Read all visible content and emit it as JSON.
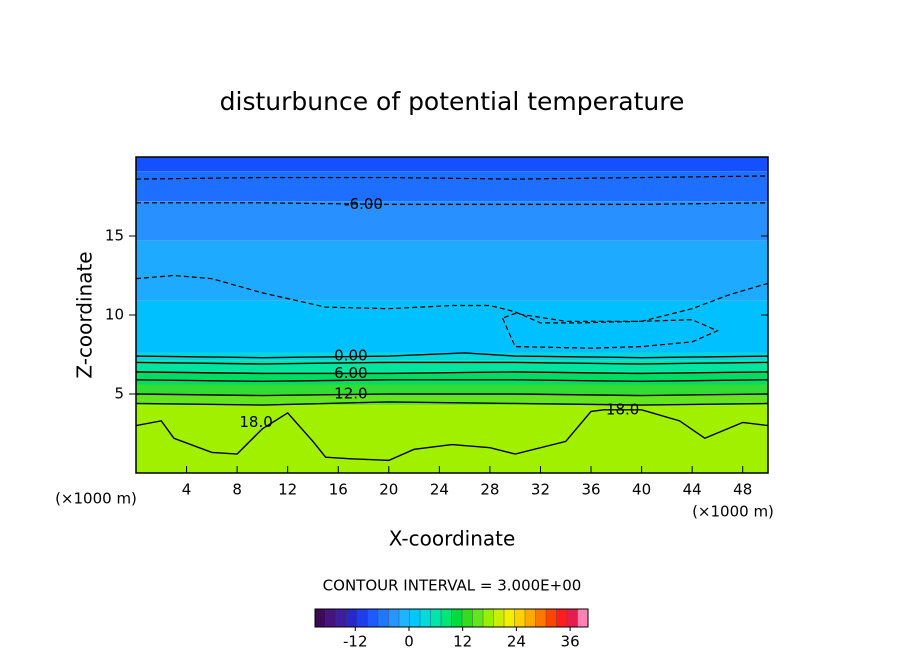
{
  "chart_data": {
    "type": "contour",
    "title": "disturbunce of potential temperature",
    "xlabel": "X-coordinate",
    "ylabel": "Z-coordinate",
    "x_unit_labels": [
      "(×1000 m)",
      "(×1000 m)"
    ],
    "xlim": [
      0,
      50
    ],
    "ylim": [
      0,
      20
    ],
    "xticks": [
      4,
      8,
      12,
      16,
      20,
      24,
      28,
      32,
      36,
      40,
      44,
      48
    ],
    "yticks": [
      5,
      10,
      15
    ],
    "bands": [
      {
        "z": [
          19.1,
          20
        ],
        "value": -15,
        "color": "#1450ff"
      },
      {
        "z": [
          17.2,
          19.1
        ],
        "value": -12,
        "color": "#1e6eff"
      },
      {
        "z": [
          14.7,
          17.2
        ],
        "value": -9,
        "color": "#2890ff"
      },
      {
        "z": [
          10.9,
          14.7
        ],
        "value": -6,
        "color": "#1eaaff"
      },
      {
        "z": [
          7.6,
          10.9
        ],
        "value": -3,
        "color": "#00c0ff"
      },
      {
        "z": [
          7.1,
          7.6
        ],
        "value": 0,
        "color": "#00d8dc"
      },
      {
        "z": [
          6.4,
          7.1
        ],
        "value": 3,
        "color": "#00e6a0"
      },
      {
        "z": [
          5.6,
          6.4
        ],
        "value": 6,
        "color": "#00dc64"
      },
      {
        "z": [
          4.9,
          5.6
        ],
        "value": 9,
        "color": "#32dc32"
      },
      {
        "z": [
          4.3,
          4.9
        ],
        "value": 12,
        "color": "#64e61e"
      },
      {
        "z": [
          0,
          4.3
        ],
        "value": 15,
        "color": "#a0f000"
      }
    ],
    "contours": [
      {
        "level": -12,
        "dashed": true,
        "x": [
          0,
          10,
          20,
          30,
          40,
          50
        ],
        "y": [
          18.6,
          18.7,
          18.7,
          18.6,
          18.7,
          18.8
        ],
        "labels": []
      },
      {
        "level": -6,
        "dashed": true,
        "x": [
          0,
          10,
          20,
          30,
          40,
          50
        ],
        "y": [
          17.1,
          17.1,
          17.0,
          17.0,
          17.0,
          17.1
        ],
        "labels": [
          {
            "x": 18,
            "y": 17.0,
            "text": "-6.00"
          }
        ]
      },
      {
        "level": -3,
        "dashed": true,
        "x": [
          0,
          3,
          6,
          10,
          15,
          20,
          25,
          28,
          30,
          32,
          35,
          40,
          44,
          47,
          50
        ],
        "y": [
          12.3,
          12.5,
          12.3,
          11.4,
          10.5,
          10.4,
          10.6,
          10.6,
          10.2,
          9.5,
          9.5,
          9.6,
          10.4,
          11.3,
          12.0
        ],
        "labels": []
      },
      {
        "level": -3,
        "dashed": true,
        "x": [
          29,
          30,
          36,
          40,
          44,
          46,
          44,
          40,
          34,
          30,
          29
        ],
        "y": [
          9.8,
          8.0,
          7.9,
          8.0,
          8.3,
          9.0,
          9.7,
          9.6,
          9.6,
          10.1,
          9.8
        ],
        "labels": []
      },
      {
        "level": 0,
        "dashed": false,
        "x": [
          0,
          10,
          20,
          26,
          30,
          40,
          50
        ],
        "y": [
          7.4,
          7.3,
          7.4,
          7.6,
          7.4,
          7.3,
          7.4
        ],
        "labels": [
          {
            "x": 17,
            "y": 7.4,
            "text": "0.00"
          }
        ]
      },
      {
        "level": 3,
        "dashed": false,
        "x": [
          0,
          10,
          20,
          30,
          40,
          50
        ],
        "y": [
          7.0,
          6.9,
          7.0,
          7.0,
          6.9,
          7.0
        ],
        "labels": []
      },
      {
        "level": 6,
        "dashed": false,
        "x": [
          0,
          10,
          20,
          30,
          40,
          50
        ],
        "y": [
          6.4,
          6.3,
          6.3,
          6.4,
          6.3,
          6.4
        ],
        "labels": [
          {
            "x": 17,
            "y": 6.3,
            "text": "6.00"
          }
        ]
      },
      {
        "level": 9,
        "dashed": false,
        "x": [
          0,
          10,
          20,
          30,
          40,
          50
        ],
        "y": [
          5.9,
          5.8,
          5.9,
          5.9,
          5.8,
          5.9
        ],
        "labels": []
      },
      {
        "level": 12,
        "dashed": false,
        "x": [
          0,
          10,
          20,
          30,
          40,
          50
        ],
        "y": [
          5.0,
          4.9,
          5.0,
          5.0,
          4.9,
          5.0
        ],
        "labels": [
          {
            "x": 17,
            "y": 5.0,
            "text": "12.0"
          }
        ]
      },
      {
        "level": 15,
        "dashed": false,
        "x": [
          0,
          10,
          20,
          30,
          40,
          50
        ],
        "y": [
          4.4,
          4.3,
          4.5,
          4.4,
          4.3,
          4.4
        ],
        "labels": []
      },
      {
        "level": 18,
        "dashed": false,
        "x": [
          0,
          2,
          3,
          6,
          8,
          10,
          12,
          14,
          15,
          17,
          20,
          22,
          25,
          28,
          30,
          34,
          36,
          37,
          40,
          43,
          45,
          48,
          50
        ],
        "y": [
          3.0,
          3.3,
          2.2,
          1.3,
          1.2,
          2.8,
          3.8,
          2.0,
          1.0,
          0.9,
          0.8,
          1.5,
          1.8,
          1.6,
          1.2,
          2.0,
          3.9,
          4.0,
          4.0,
          3.3,
          2.2,
          3.2,
          3.0
        ],
        "labels": [
          {
            "x": 9.5,
            "y": 3.2,
            "text": "18.0"
          },
          {
            "x": 38.5,
            "y": 4.0,
            "text": "18.0"
          }
        ]
      }
    ],
    "contour_interval_label": "CONTOUR INTERVAL = 3.000E+00",
    "colorbar": {
      "lim": [
        -21,
        40
      ],
      "ticks": [
        -12,
        0,
        12,
        24,
        36
      ],
      "colors": [
        "#3c0a5a",
        "#46147d",
        "#3c1ea0",
        "#2828c8",
        "#1e3cf0",
        "#1e5aff",
        "#1e78ff",
        "#2896ff",
        "#1eb4ff",
        "#00c8ff",
        "#00dcdc",
        "#00e6aa",
        "#00e678",
        "#00dc3c",
        "#32dc1e",
        "#64e61e",
        "#96f000",
        "#c8f000",
        "#f0f000",
        "#ffd200",
        "#ffaa00",
        "#ff7800",
        "#ff4600",
        "#ff1e1e",
        "#e61e50",
        "#ff82b4"
      ]
    }
  }
}
